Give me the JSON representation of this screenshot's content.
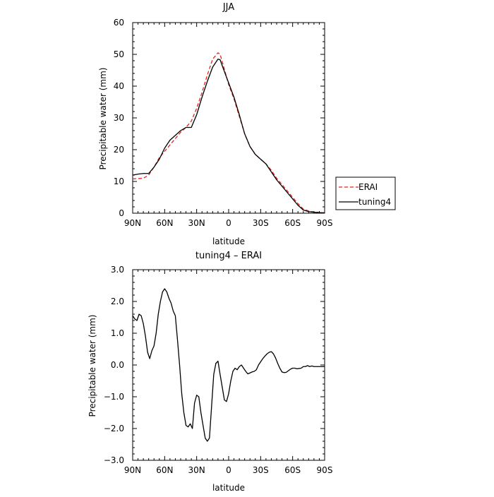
{
  "chart_data": [
    {
      "type": "line",
      "title": "JJA",
      "xlabel": "latitude",
      "ylabel": "Precipitable water (mm)",
      "xlim": [
        90,
        -90
      ],
      "ylim": [
        0,
        60
      ],
      "x_tick_values": [
        90,
        60,
        30,
        0,
        -30,
        -60,
        -90
      ],
      "x_tick_labels": [
        "90N",
        "60N",
        "30N",
        "0",
        "30S",
        "60S",
        "90S"
      ],
      "y_tick_values": [
        0,
        10,
        20,
        30,
        40,
        50,
        60
      ],
      "y_tick_labels": [
        "0",
        "10",
        "20",
        "30",
        "40",
        "50",
        "60"
      ],
      "grid": false,
      "legend": {
        "placement": "right",
        "entries": [
          "ERAI",
          "tuning4"
        ]
      },
      "series": [
        {
          "name": "ERAI",
          "color": "#e8201e",
          "dash": true,
          "x": [
            90,
            85,
            80,
            75,
            70,
            65,
            60,
            55,
            50,
            45,
            40,
            35,
            30,
            25,
            20,
            15,
            10,
            8,
            5,
            0,
            -5,
            -10,
            -15,
            -20,
            -25,
            -30,
            -35,
            -40,
            -45,
            -50,
            -55,
            -60,
            -65,
            -70,
            -75,
            -80,
            -85,
            -90
          ],
          "y": [
            10.8,
            10.9,
            11.0,
            12.0,
            14.5,
            17.5,
            19.5,
            21.5,
            23.5,
            25.5,
            27.0,
            29.0,
            33.0,
            38.0,
            43.5,
            48.5,
            50.5,
            50.0,
            46.5,
            40.5,
            36.0,
            30.5,
            25.0,
            21.0,
            18.5,
            17.0,
            15.5,
            13.5,
            11.0,
            9.0,
            7.0,
            5.0,
            3.0,
            1.3,
            0.7,
            0.4,
            0.2,
            0.1
          ]
        },
        {
          "name": "tuning4",
          "color": "#000000",
          "dash": false,
          "x": [
            90,
            85,
            80,
            75,
            70,
            65,
            60,
            55,
            50,
            45,
            40,
            35,
            30,
            25,
            20,
            15,
            10,
            8,
            5,
            0,
            -5,
            -10,
            -15,
            -20,
            -25,
            -30,
            -35,
            -40,
            -45,
            -50,
            -55,
            -60,
            -65,
            -70,
            -75,
            -80,
            -85,
            -90
          ],
          "y": [
            12.0,
            12.3,
            12.5,
            12.5,
            14.5,
            17.0,
            20.5,
            23.0,
            24.5,
            26.0,
            27.0,
            27.0,
            31.0,
            36.5,
            41.5,
            46.0,
            48.5,
            48.3,
            45.5,
            41.0,
            36.5,
            31.0,
            25.0,
            21.0,
            18.5,
            17.0,
            15.5,
            13.0,
            10.5,
            8.5,
            6.5,
            4.5,
            2.5,
            1.0,
            0.5,
            0.3,
            0.2,
            0.1
          ]
        }
      ]
    },
    {
      "type": "line",
      "title": "tuning4 – ERAI",
      "xlabel": "latitude",
      "ylabel": "Precipitable water (mm)",
      "xlim": [
        90,
        -90
      ],
      "ylim": [
        -3,
        3
      ],
      "x_tick_values": [
        90,
        60,
        30,
        0,
        -30,
        -60,
        -90
      ],
      "x_tick_labels": [
        "90N",
        "60N",
        "30N",
        "0",
        "30S",
        "60S",
        "90S"
      ],
      "y_tick_values": [
        3,
        2,
        1,
        0,
        -1,
        -2,
        -3
      ],
      "y_tick_labels": [
        "3.0",
        "2.0",
        "1.0",
        "0.0",
        "−1.0",
        "−2.0",
        "−3.0"
      ],
      "grid": false,
      "series": [
        {
          "color": "#000000",
          "dash": false,
          "x": [
            90,
            88,
            86,
            84,
            82,
            80,
            78,
            76,
            74,
            72,
            70,
            68,
            66,
            64,
            62,
            60,
            58,
            56,
            54,
            52,
            50,
            48,
            46,
            44,
            42,
            40,
            38,
            36,
            34,
            32,
            30,
            28,
            26,
            24,
            22,
            20,
            18,
            16,
            14,
            12,
            10,
            8,
            6,
            4,
            2,
            0,
            -2,
            -4,
            -6,
            -8,
            -10,
            -12,
            -14,
            -16,
            -18,
            -20,
            -22,
            -24,
            -26,
            -28,
            -30,
            -32,
            -34,
            -36,
            -38,
            -40,
            -42,
            -44,
            -46,
            -48,
            -50,
            -52,
            -54,
            -56,
            -58,
            -60,
            -62,
            -64,
            -66,
            -68,
            -70,
            -72,
            -74,
            -76,
            -78,
            -80,
            -82,
            -84,
            -86,
            -88,
            -90
          ],
          "y": [
            1.55,
            1.45,
            1.4,
            1.6,
            1.55,
            1.3,
            0.9,
            0.4,
            0.2,
            0.45,
            0.6,
            1.0,
            1.6,
            2.0,
            2.3,
            2.4,
            2.3,
            2.1,
            1.95,
            1.7,
            1.55,
            0.8,
            0.0,
            -0.9,
            -1.5,
            -1.9,
            -1.95,
            -1.85,
            -2.0,
            -1.2,
            -0.95,
            -1.0,
            -1.5,
            -1.9,
            -2.3,
            -2.4,
            -2.3,
            -1.3,
            -0.3,
            0.05,
            0.12,
            -0.3,
            -0.7,
            -1.1,
            -1.15,
            -0.9,
            -0.5,
            -0.2,
            -0.1,
            -0.15,
            -0.05,
            0.0,
            -0.1,
            -0.2,
            -0.28,
            -0.25,
            -0.22,
            -0.2,
            -0.15,
            0.0,
            0.1,
            0.2,
            0.28,
            0.35,
            0.4,
            0.42,
            0.35,
            0.22,
            0.05,
            -0.1,
            -0.22,
            -0.24,
            -0.23,
            -0.18,
            -0.13,
            -0.1,
            -0.1,
            -0.12,
            -0.11,
            -0.1,
            -0.05,
            -0.05,
            -0.02,
            -0.05,
            -0.03,
            -0.05,
            -0.05,
            -0.05,
            -0.05,
            -0.05,
            -0.05
          ]
        }
      ]
    }
  ]
}
